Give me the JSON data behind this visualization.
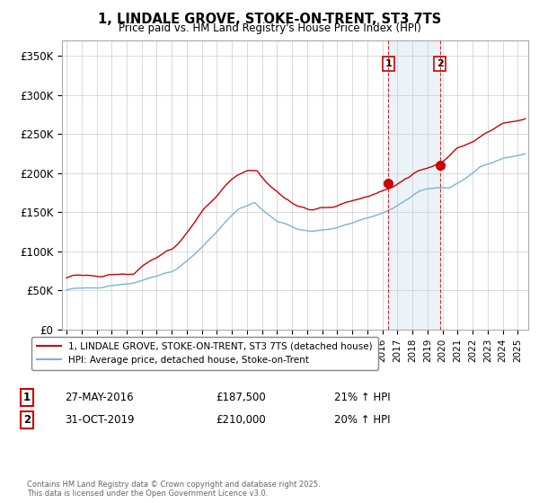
{
  "title": "1, LINDALE GROVE, STOKE-ON-TRENT, ST3 7TS",
  "subtitle": "Price paid vs. HM Land Registry's House Price Index (HPI)",
  "ylabel_ticks": [
    "£0",
    "£50K",
    "£100K",
    "£150K",
    "£200K",
    "£250K",
    "£300K",
    "£350K"
  ],
  "ytick_values": [
    0,
    50000,
    100000,
    150000,
    200000,
    250000,
    300000,
    350000
  ],
  "ylim": [
    0,
    370000
  ],
  "xlim_start": 1994.7,
  "xlim_end": 2025.7,
  "years_ticks": [
    1995,
    1996,
    1997,
    1998,
    1999,
    2000,
    2001,
    2002,
    2003,
    2004,
    2005,
    2006,
    2007,
    2008,
    2009,
    2010,
    2011,
    2012,
    2013,
    2014,
    2015,
    2016,
    2017,
    2018,
    2019,
    2020,
    2021,
    2022,
    2023,
    2024,
    2025
  ],
  "red_color": "#cc0000",
  "blue_color": "#7ab4d4",
  "shade_color": "#ddeeff",
  "sale1_x": 2016.41,
  "sale1_y": 187500,
  "sale2_x": 2019.83,
  "sale2_y": 210000,
  "sale1_label": "1",
  "sale2_label": "2",
  "legend_red_label": "1, LINDALE GROVE, STOKE-ON-TRENT, ST3 7TS (detached house)",
  "legend_blue_label": "HPI: Average price, detached house, Stoke-on-Trent",
  "annotation1_date": "27-MAY-2016",
  "annotation1_price": "£187,500",
  "annotation1_hpi": "21% ↑ HPI",
  "annotation2_date": "31-OCT-2019",
  "annotation2_price": "£210,000",
  "annotation2_hpi": "20% ↑ HPI",
  "footer": "Contains HM Land Registry data © Crown copyright and database right 2025.\nThis data is licensed under the Open Government Licence v3.0.",
  "background_color": "#ffffff",
  "grid_color": "#cccccc"
}
